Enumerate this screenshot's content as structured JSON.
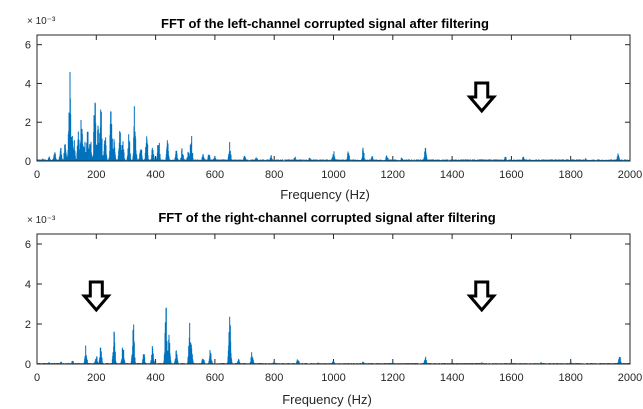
{
  "chart_data": [
    {
      "type": "line",
      "title": "FFT of the left-channel corrupted signal after filtering",
      "xlabel": "Frequency (Hz)",
      "ylabel": "",
      "xlim": [
        0,
        2000
      ],
      "ylim": [
        0,
        6.5
      ],
      "x_ticks": [
        "0",
        "200",
        "400",
        "600",
        "800",
        "1000",
        "1200",
        "1400",
        "1600",
        "1800",
        "2000"
      ],
      "y_ticks": [
        "0",
        "2",
        "4",
        "6"
      ],
      "exponent": "× 10⁻³",
      "line_color": "#0072bd",
      "baseline": 0.05,
      "arrows": [
        1500
      ],
      "peaks": [
        {
          "x": 20,
          "y": 0.15
        },
        {
          "x": 40,
          "y": 0.3
        },
        {
          "x": 60,
          "y": 0.5
        },
        {
          "x": 80,
          "y": 0.8
        },
        {
          "x": 95,
          "y": 1.0
        },
        {
          "x": 110,
          "y": 5.2
        },
        {
          "x": 118,
          "y": 1.6
        },
        {
          "x": 125,
          "y": 1.2
        },
        {
          "x": 140,
          "y": 1.9
        },
        {
          "x": 150,
          "y": 2.6
        },
        {
          "x": 160,
          "y": 1.5
        },
        {
          "x": 170,
          "y": 2.2
        },
        {
          "x": 180,
          "y": 1.3
        },
        {
          "x": 195,
          "y": 3.7
        },
        {
          "x": 205,
          "y": 2.7
        },
        {
          "x": 215,
          "y": 3.5
        },
        {
          "x": 230,
          "y": 1.5
        },
        {
          "x": 250,
          "y": 3.0
        },
        {
          "x": 260,
          "y": 1.2
        },
        {
          "x": 280,
          "y": 1.8
        },
        {
          "x": 290,
          "y": 1.2
        },
        {
          "x": 310,
          "y": 1.5
        },
        {
          "x": 330,
          "y": 3.6
        },
        {
          "x": 350,
          "y": 1.0
        },
        {
          "x": 370,
          "y": 1.6
        },
        {
          "x": 390,
          "y": 0.8
        },
        {
          "x": 410,
          "y": 1.4
        },
        {
          "x": 440,
          "y": 1.2
        },
        {
          "x": 470,
          "y": 0.6
        },
        {
          "x": 490,
          "y": 0.8
        },
        {
          "x": 510,
          "y": 0.5
        },
        {
          "x": 520,
          "y": 1.7
        },
        {
          "x": 560,
          "y": 0.4
        },
        {
          "x": 580,
          "y": 0.5
        },
        {
          "x": 600,
          "y": 0.35
        },
        {
          "x": 650,
          "y": 1.0
        },
        {
          "x": 700,
          "y": 0.3
        },
        {
          "x": 740,
          "y": 0.25
        },
        {
          "x": 790,
          "y": 0.3
        },
        {
          "x": 870,
          "y": 0.25
        },
        {
          "x": 920,
          "y": 0.2
        },
        {
          "x": 1000,
          "y": 0.8
        },
        {
          "x": 1050,
          "y": 0.6
        },
        {
          "x": 1100,
          "y": 0.7
        },
        {
          "x": 1130,
          "y": 0.3
        },
        {
          "x": 1180,
          "y": 0.35
        },
        {
          "x": 1230,
          "y": 0.2
        },
        {
          "x": 1310,
          "y": 0.7
        },
        {
          "x": 1400,
          "y": 0.15
        },
        {
          "x": 1500,
          "y": 0.12
        },
        {
          "x": 1580,
          "y": 0.25
        },
        {
          "x": 1640,
          "y": 0.25
        },
        {
          "x": 1750,
          "y": 0.15
        },
        {
          "x": 1850,
          "y": 0.15
        },
        {
          "x": 1960,
          "y": 0.4
        }
      ]
    },
    {
      "type": "line",
      "title": "FFT of the right-channel corrupted signal after filtering",
      "xlabel": "Frequency (Hz)",
      "ylabel": "",
      "xlim": [
        0,
        2000
      ],
      "ylim": [
        0,
        6.5
      ],
      "x_ticks": [
        "0",
        "200",
        "400",
        "600",
        "800",
        "1000",
        "1200",
        "1400",
        "1600",
        "1800",
        "2000"
      ],
      "y_ticks": [
        "0",
        "2",
        "4",
        "6"
      ],
      "exponent": "× 10⁻³",
      "line_color": "#0072bd",
      "baseline": 0.03,
      "arrows": [
        200,
        1500
      ],
      "peaks": [
        {
          "x": 40,
          "y": 0.1
        },
        {
          "x": 80,
          "y": 0.15
        },
        {
          "x": 120,
          "y": 0.2
        },
        {
          "x": 165,
          "y": 1.0
        },
        {
          "x": 200,
          "y": 0.5
        },
        {
          "x": 215,
          "y": 1.0
        },
        {
          "x": 260,
          "y": 1.8
        },
        {
          "x": 290,
          "y": 1.1
        },
        {
          "x": 325,
          "y": 2.1
        },
        {
          "x": 360,
          "y": 0.6
        },
        {
          "x": 390,
          "y": 1.0
        },
        {
          "x": 435,
          "y": 3.2
        },
        {
          "x": 445,
          "y": 1.6
        },
        {
          "x": 470,
          "y": 0.7
        },
        {
          "x": 515,
          "y": 2.3
        },
        {
          "x": 520,
          "y": 1.8
        },
        {
          "x": 560,
          "y": 0.4
        },
        {
          "x": 585,
          "y": 0.8
        },
        {
          "x": 650,
          "y": 2.5
        },
        {
          "x": 680,
          "y": 0.3
        },
        {
          "x": 725,
          "y": 0.7
        },
        {
          "x": 800,
          "y": 0.15
        },
        {
          "x": 880,
          "y": 0.3
        },
        {
          "x": 950,
          "y": 0.1
        },
        {
          "x": 1000,
          "y": 0.2
        },
        {
          "x": 1100,
          "y": 0.15
        },
        {
          "x": 1200,
          "y": 0.1
        },
        {
          "x": 1310,
          "y": 0.4
        },
        {
          "x": 1400,
          "y": 0.1
        },
        {
          "x": 1500,
          "y": 0.1
        },
        {
          "x": 1600,
          "y": 0.1
        },
        {
          "x": 1700,
          "y": 0.1
        },
        {
          "x": 1800,
          "y": 0.1
        },
        {
          "x": 1965,
          "y": 0.5
        }
      ]
    }
  ]
}
